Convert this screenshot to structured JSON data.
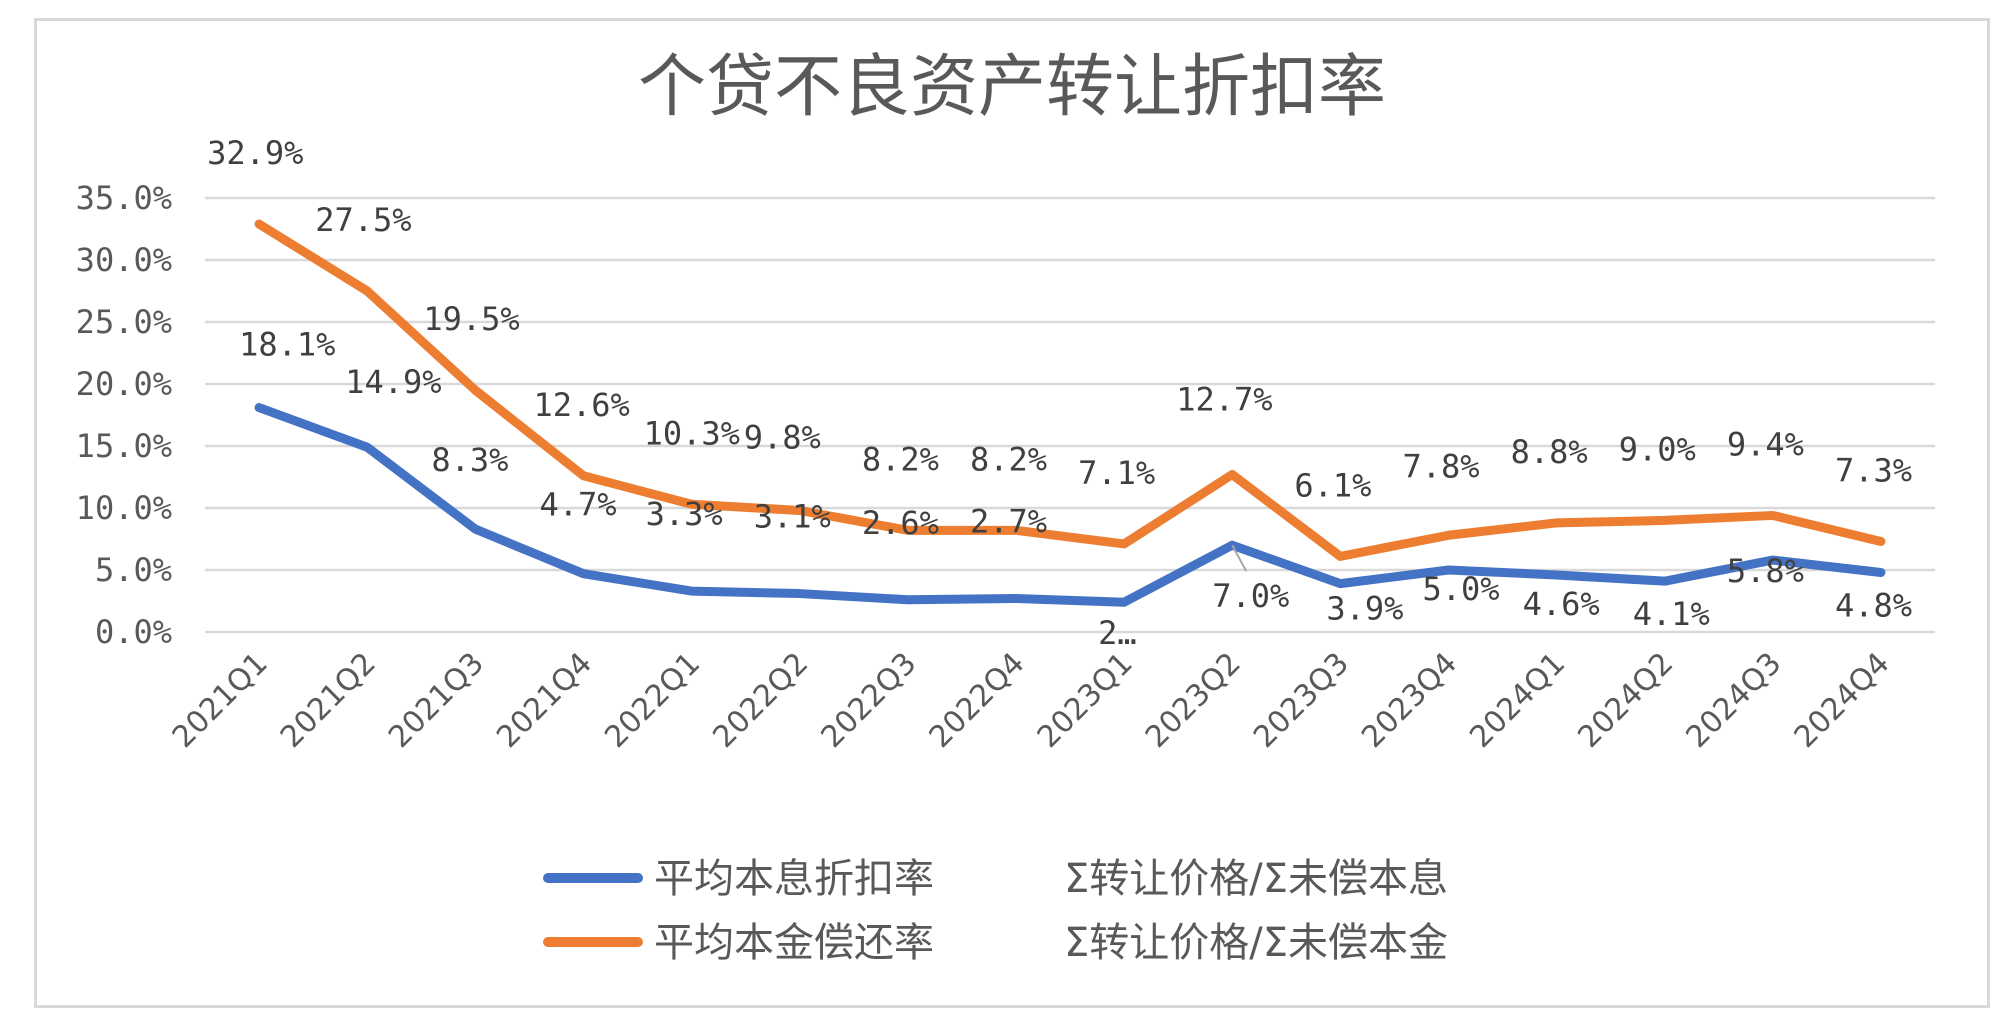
{
  "chart_data": {
    "type": "line",
    "title": "个贷不良资产转让折扣率",
    "categories": [
      "2021Q1",
      "2021Q2",
      "2021Q3",
      "2021Q4",
      "2022Q1",
      "2022Q2",
      "2022Q3",
      "2022Q4",
      "2023Q1",
      "2023Q2",
      "2023Q3",
      "2023Q4",
      "2024Q1",
      "2024Q2",
      "2024Q3",
      "2024Q4"
    ],
    "y_ticks": [
      "0.0%",
      "5.0%",
      "10.0%",
      "15.0%",
      "20.0%",
      "25.0%",
      "30.0%",
      "35.0%"
    ],
    "ylim": [
      0,
      35
    ],
    "grid": true,
    "legend_position": "bottom",
    "series": [
      {
        "name": "平均本息折扣率",
        "formula": "Σ转让价格/Σ未偿本息",
        "color": "#4472c4",
        "values": [
          18.1,
          14.9,
          8.3,
          4.7,
          3.3,
          3.1,
          2.6,
          2.7,
          2.4,
          7.0,
          3.9,
          5.0,
          4.6,
          4.1,
          5.8,
          4.8
        ],
        "labels": [
          "18.1%",
          "14.9%",
          "8.3%",
          "4.7%",
          "3.3%",
          "3.1%",
          "2.6%",
          "2.7%",
          "2…",
          "7.0%",
          "3.9%",
          "5.0%",
          "4.6%",
          "4.1%",
          "5.8%",
          "4.8%"
        ]
      },
      {
        "name": "平均本金偿还率",
        "formula": "Σ转让价格/Σ未偿本金",
        "color": "#ed7d31",
        "values": [
          32.9,
          27.5,
          19.5,
          12.6,
          10.3,
          9.8,
          8.2,
          8.2,
          7.1,
          12.7,
          6.1,
          7.8,
          8.8,
          9.0,
          9.4,
          7.3
        ],
        "labels": [
          "32.9%",
          "27.5%",
          "19.5%",
          "12.6%",
          "10.3%",
          "9.8%",
          "8.2%",
          "8.2%",
          "7.1%",
          "12.7%",
          "6.1%",
          "7.8%",
          "8.8%",
          "9.0%",
          "9.4%",
          "7.3%"
        ]
      }
    ]
  }
}
